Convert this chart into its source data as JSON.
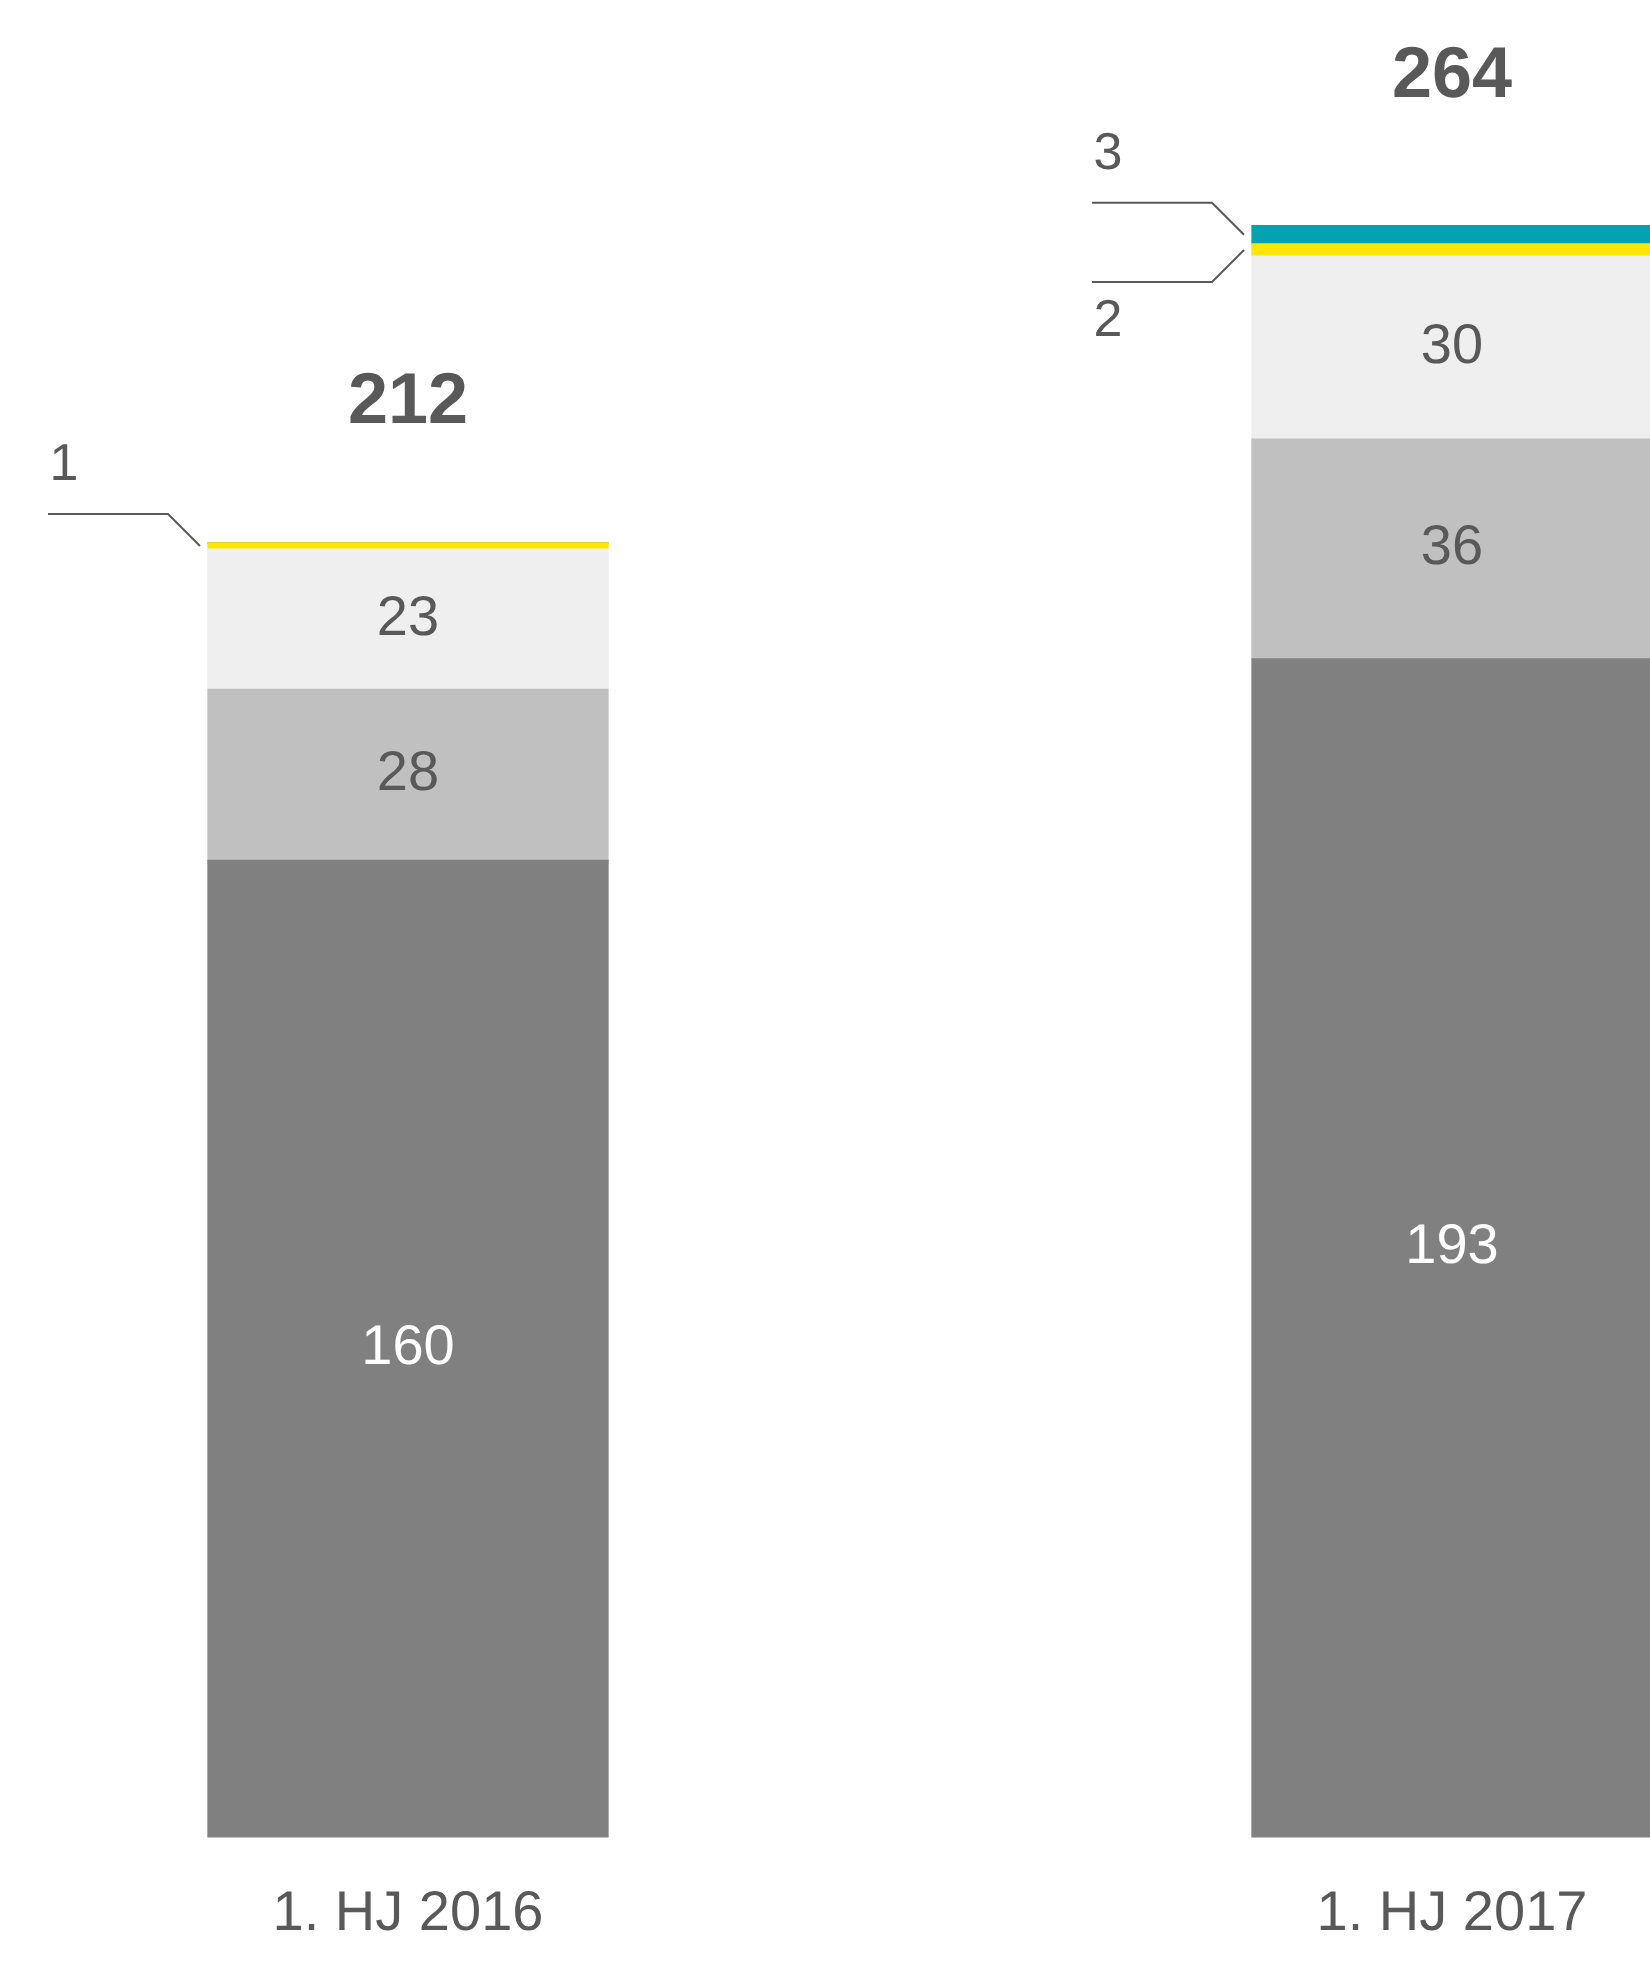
{
  "chart_data": {
    "type": "bar",
    "stacked": true,
    "categories": [
      "1. HJ 2016",
      "1. HJ 2017"
    ],
    "series": [
      {
        "color": "#808080",
        "values": [
          160,
          193
        ],
        "value_labels": [
          "160",
          "193"
        ]
      },
      {
        "color": "#c0c0c0",
        "values": [
          28,
          36
        ],
        "value_labels": [
          "28",
          "36"
        ]
      },
      {
        "color": "#efefef",
        "values": [
          23,
          30
        ],
        "value_labels": [
          "23",
          "30"
        ]
      },
      {
        "color": "#ffe600",
        "values": [
          1,
          2
        ],
        "value_labels": [
          "1",
          "2"
        ]
      },
      {
        "color": "#00a3ae",
        "values": [
          0,
          3
        ],
        "value_labels": [
          null,
          "3"
        ]
      }
    ],
    "totals": [
      "212",
      "264"
    ],
    "grid": false,
    "legend": false
  }
}
